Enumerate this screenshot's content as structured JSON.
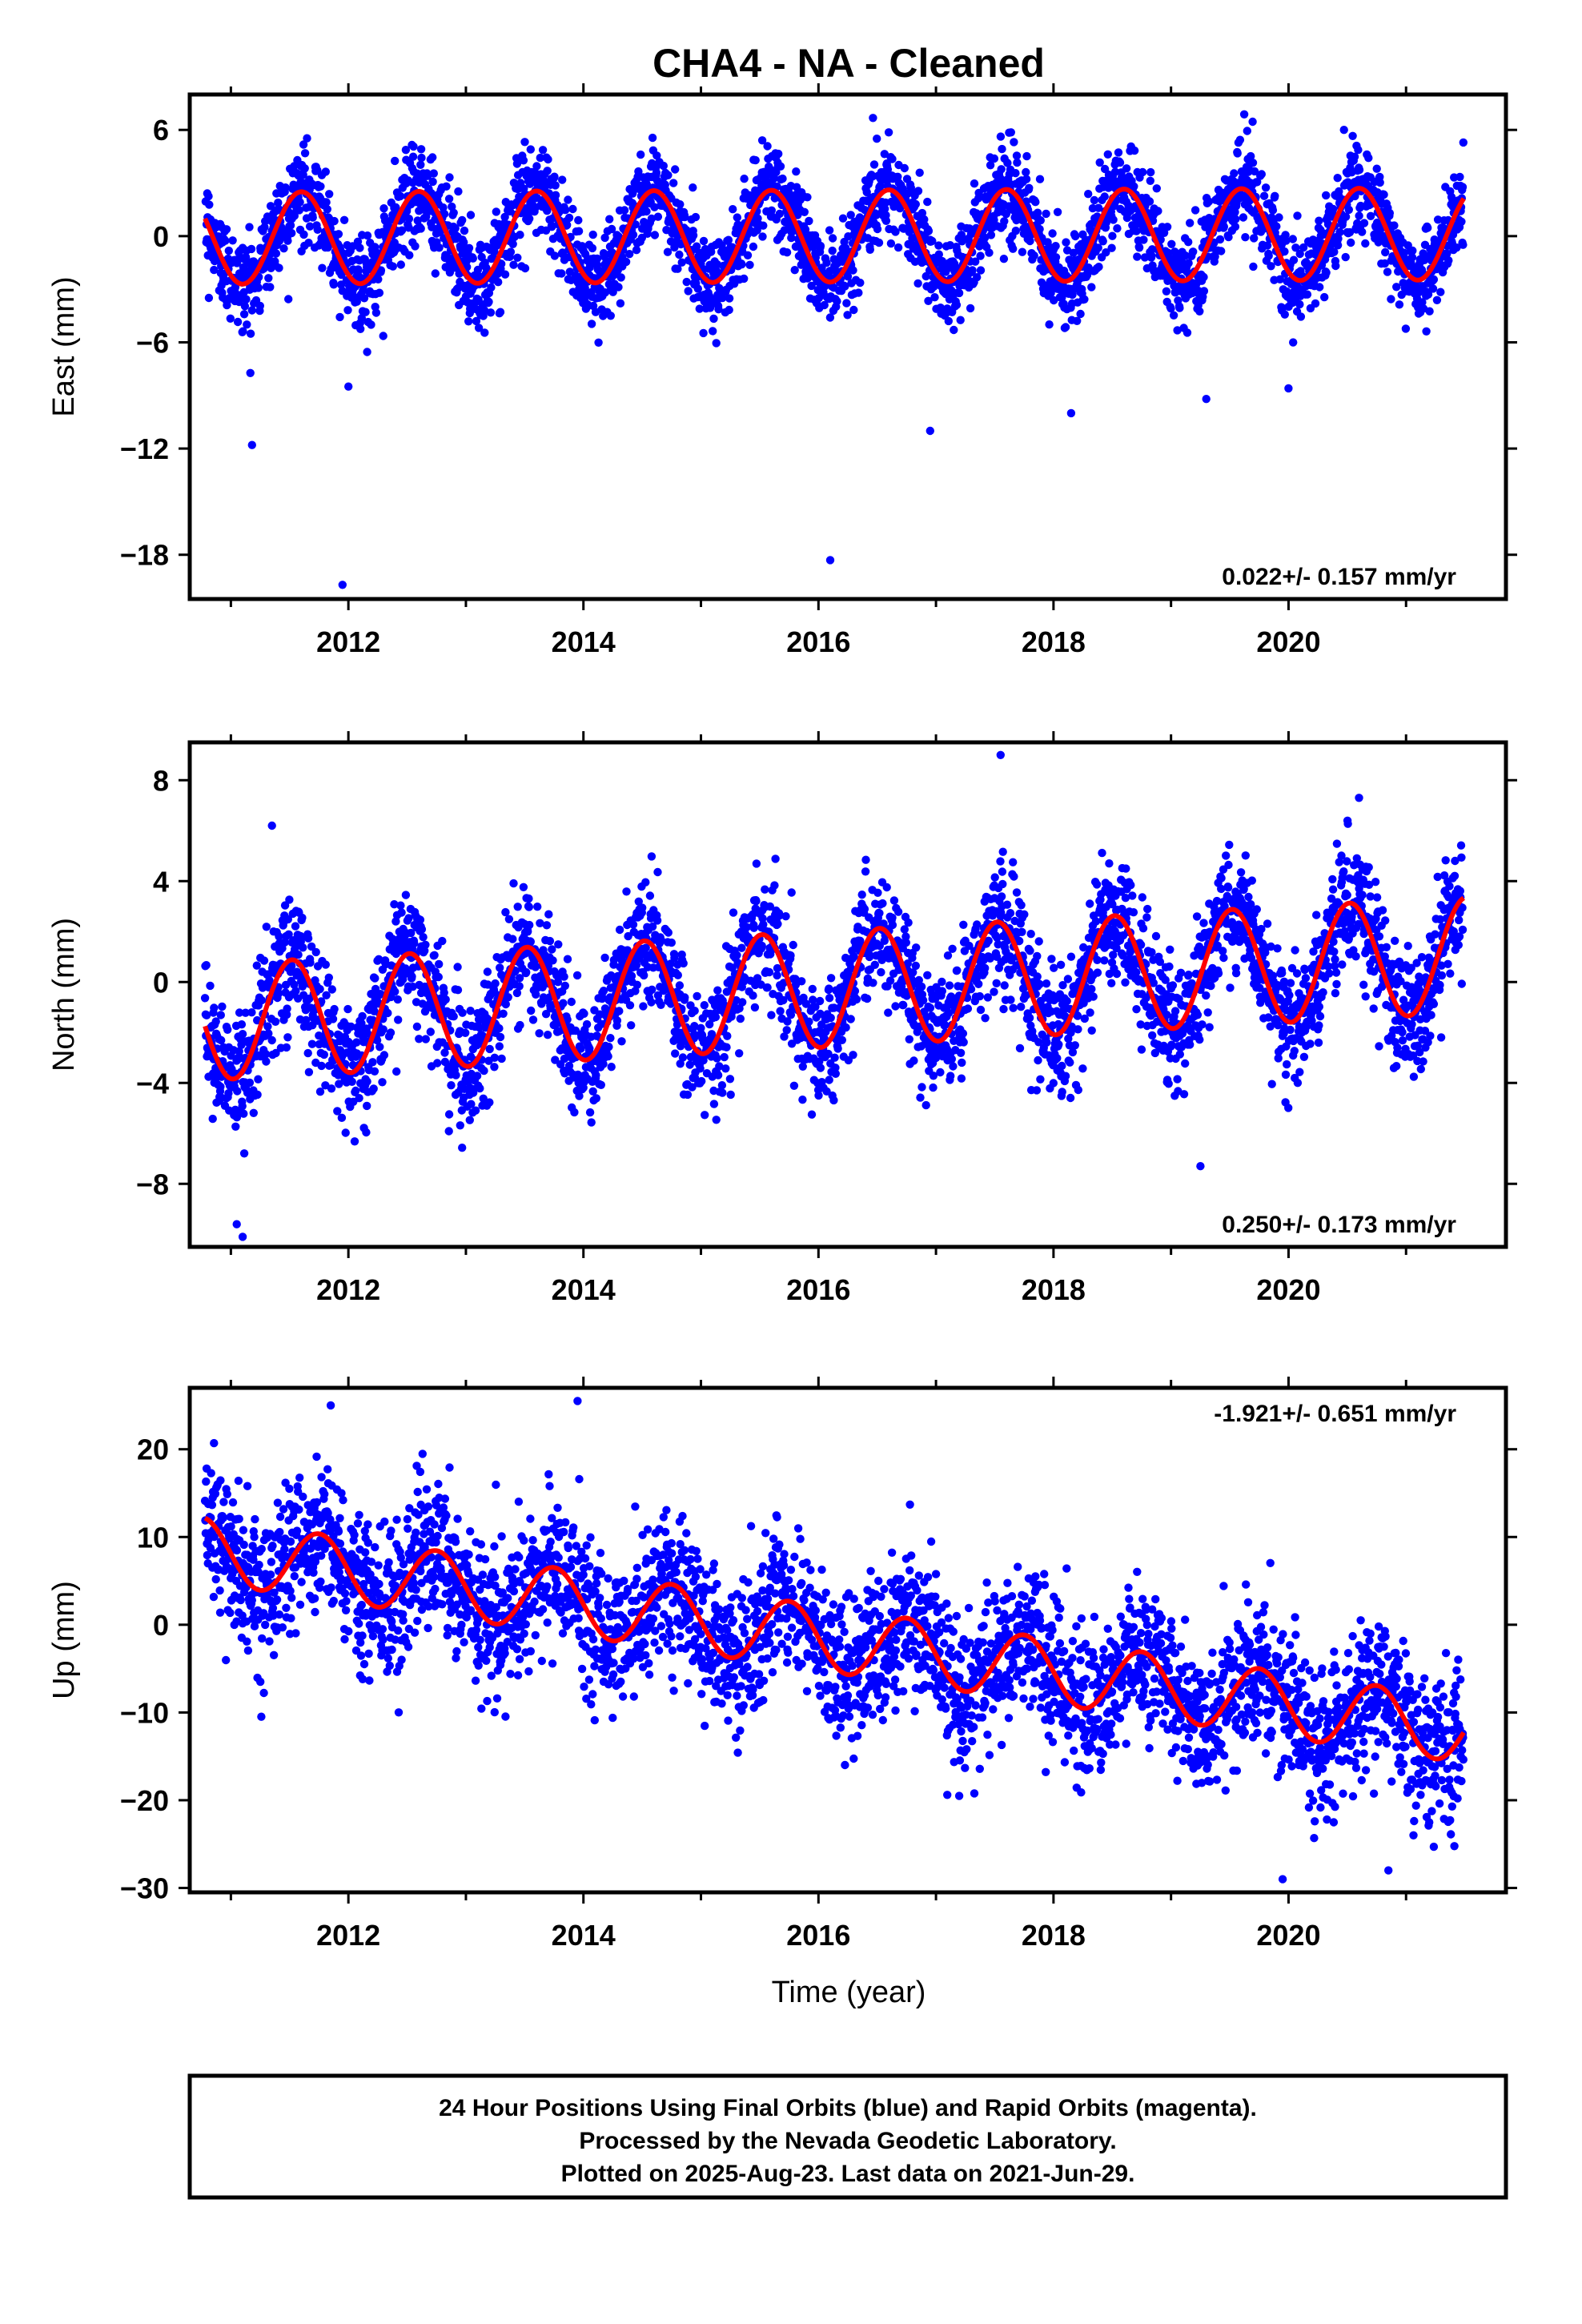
{
  "title": "CHA4  - NA - Cleaned",
  "xlabel": "Time (year)",
  "colors": {
    "points": "#0000ff",
    "model": "#ff0000",
    "frame": "#000000"
  },
  "footer": {
    "line1": "24 Hour Positions Using Final Orbits (blue) and Rapid Orbits (magenta).",
    "line2": "Processed by the Nevada Geodetic Laboratory.",
    "line3": "Plotted on 2025-Aug-23. Last data on 2021-Jun-29."
  },
  "chart_data": [
    {
      "type": "scatter",
      "component": "East",
      "ylabel": "East (mm)",
      "xlim": [
        2010.65,
        2021.85
      ],
      "ylim": [
        -20.5,
        8
      ],
      "x_ticks": [
        2012,
        2014,
        2016,
        2018,
        2020
      ],
      "y_ticks": [
        6,
        0,
        -6,
        -12,
        -18
      ],
      "rate_text": "0.022+/- 0.157 mm/yr",
      "rate_position": "bottom-right",
      "data_range": [
        2010.78,
        2021.49
      ],
      "model": {
        "name": "fit",
        "offset": 0.0,
        "trend_mm_per_yr": 0.022,
        "annual_amplitude": 2.6,
        "peak_year_fraction": 0.6
      },
      "scatter_sd": 1.3,
      "outliers": [
        [
          2011.18,
          -11.8
        ],
        [
          2011.95,
          -19.7
        ],
        [
          2012.0,
          -8.5
        ],
        [
          2016.1,
          -18.3
        ],
        [
          2016.95,
          -11.0
        ],
        [
          2018.15,
          -10.0
        ],
        [
          2019.3,
          -9.2
        ],
        [
          2020.0,
          -8.6
        ]
      ]
    },
    {
      "type": "scatter",
      "component": "North",
      "ylabel": "North (mm)",
      "xlim": [
        2010.65,
        2021.85
      ],
      "ylim": [
        -10.5,
        9.5
      ],
      "x_ticks": [
        2012,
        2014,
        2016,
        2018,
        2020
      ],
      "y_ticks": [
        8,
        4,
        0,
        -4,
        -8
      ],
      "rate_text": "0.250+/- 0.173 mm/yr",
      "rate_position": "bottom-right",
      "data_range": [
        2010.78,
        2021.49
      ],
      "model": {
        "name": "fit",
        "offset": -0.3,
        "trend_mm_per_yr": 0.25,
        "annual_amplitude": 2.3,
        "peak_year_fraction": 0.52
      },
      "scatter_sd": 1.2,
      "outliers": [
        [
          2011.05,
          -9.6
        ],
        [
          2011.1,
          -10.1
        ],
        [
          2011.35,
          6.2
        ],
        [
          2017.55,
          9.0
        ],
        [
          2019.25,
          -7.3
        ],
        [
          2020.6,
          7.3
        ]
      ]
    },
    {
      "type": "scatter",
      "component": "Up",
      "ylabel": "Up (mm)",
      "xlim": [
        2010.65,
        2021.85
      ],
      "ylim": [
        -30.5,
        27
      ],
      "x_ticks": [
        2012,
        2014,
        2016,
        2018,
        2020
      ],
      "y_ticks": [
        20,
        10,
        0,
        -10,
        -20,
        -30
      ],
      "rate_text": "-1.921+/- 0.651 mm/yr",
      "rate_position": "top-right",
      "data_range": [
        2010.78,
        2021.49
      ],
      "model": {
        "name": "fit",
        "offset": -1.5,
        "trend_mm_per_yr": -1.921,
        "annual_amplitude": 3.7,
        "peak_year_fraction": 0.75
      },
      "scatter_sd": 4.2,
      "outliers": [
        [
          2011.85,
          25.0
        ],
        [
          2013.95,
          25.5
        ],
        [
          2019.95,
          -29.0
        ],
        [
          2020.85,
          -28.0
        ]
      ]
    }
  ]
}
